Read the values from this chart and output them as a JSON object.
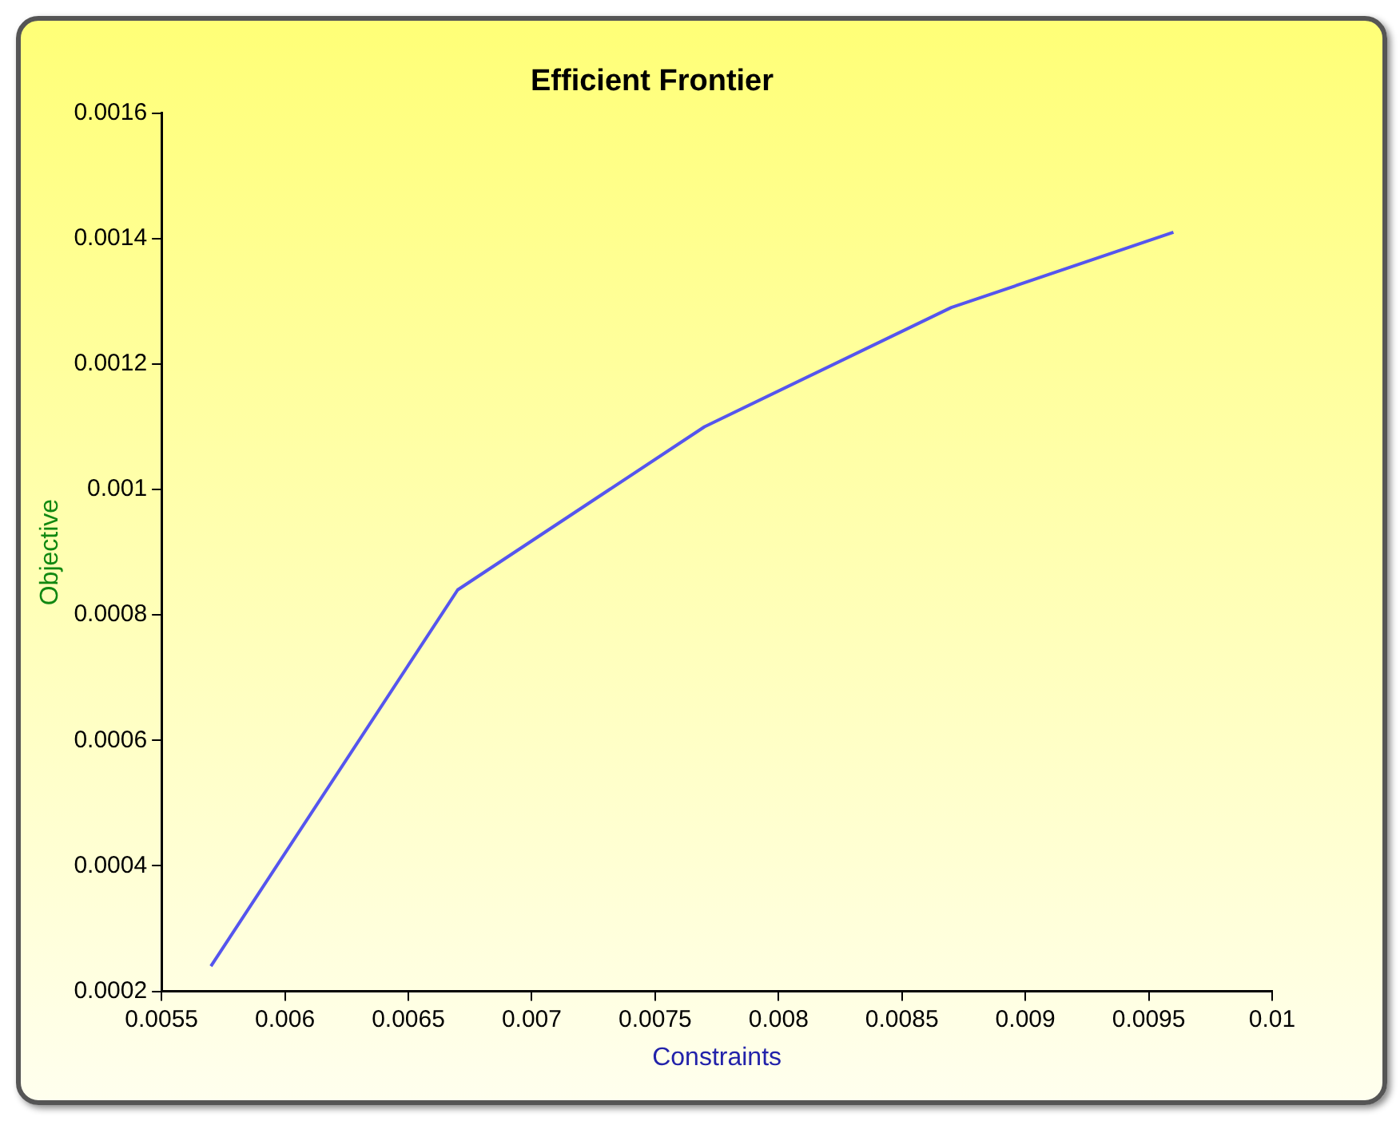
{
  "chart_data": {
    "type": "line",
    "title": "Efficient Frontier",
    "xlabel": "Constraints",
    "ylabel": "Objective",
    "x": [
      0.0057,
      0.0067,
      0.0077,
      0.0087,
      0.0096
    ],
    "series": [
      {
        "color": "#5555ee",
        "values": [
          0.00024,
          0.00084,
          0.0011,
          0.00129,
          0.00141
        ]
      }
    ],
    "xlim": [
      0.0055,
      0.01
    ],
    "xticks": [
      0.0055,
      0.006,
      0.0065,
      0.007,
      0.0075,
      0.008,
      0.0085,
      0.009,
      0.0095,
      0.01
    ],
    "ylim": [
      0.0002,
      0.0016
    ],
    "yticks": [
      0.0002,
      0.0004,
      0.0006,
      0.0008,
      0.001,
      0.0012,
      0.0014,
      0.0016
    ],
    "grid": false,
    "legend": false,
    "marker": "none",
    "line_style": "solid"
  }
}
